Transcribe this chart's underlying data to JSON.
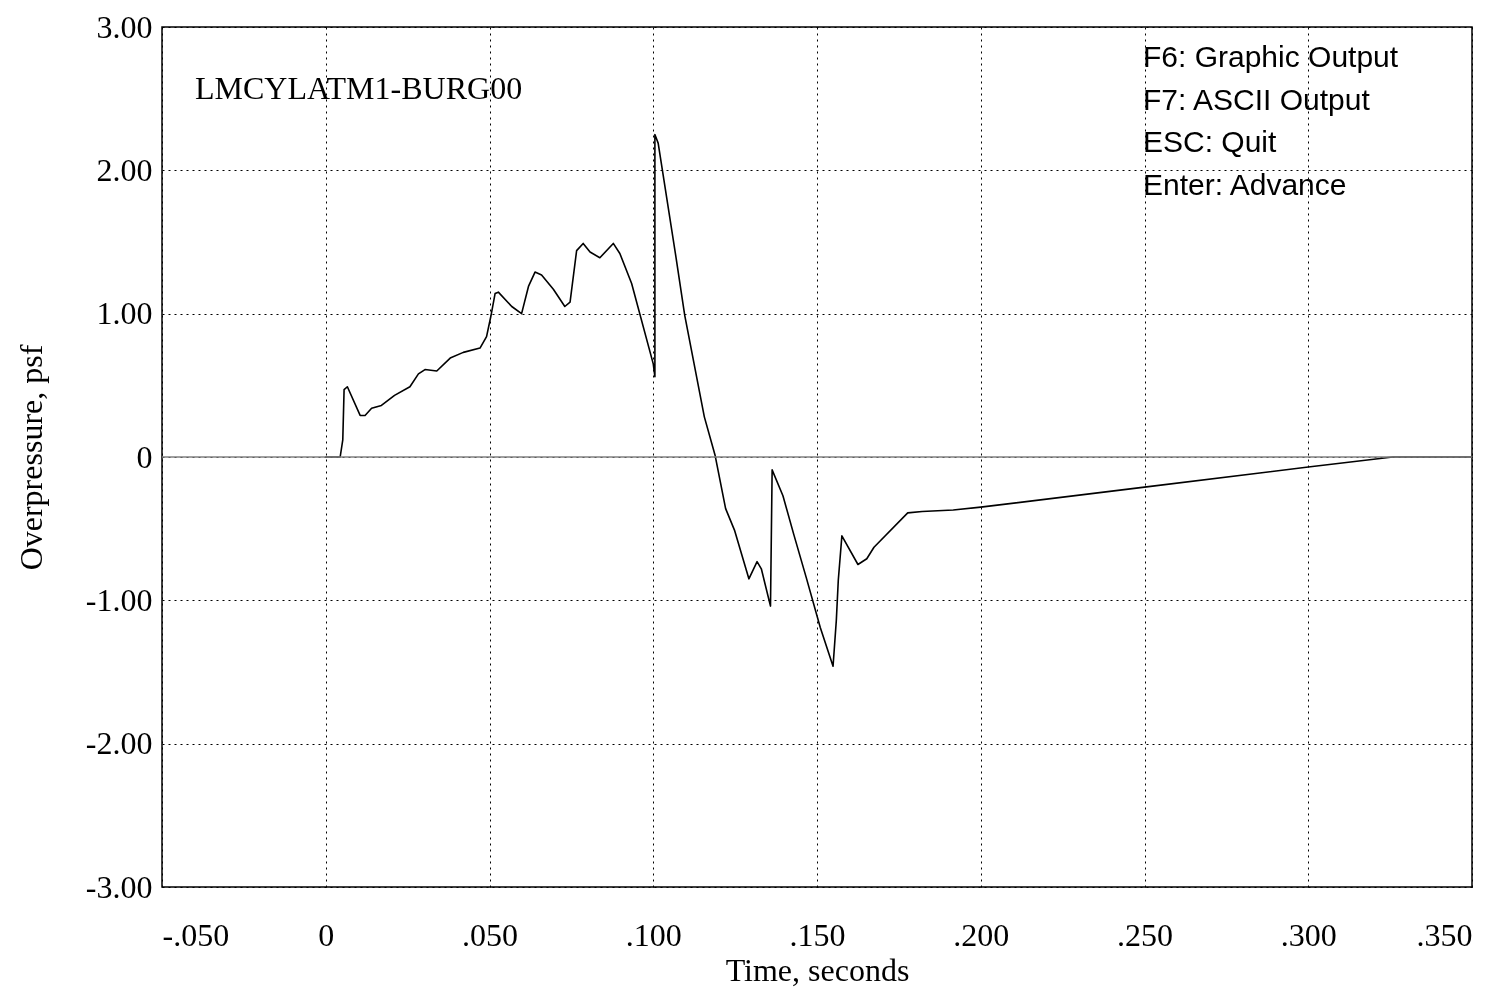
{
  "chart_data": {
    "type": "line",
    "xlabel": "Time, seconds",
    "ylabel": "Overpressure, psf",
    "annotations": [
      "LMCYLATM1-BURG00",
      "F6: Graphic Output",
      "F7: ASCII Output",
      "ESC: Quit",
      "Enter: Advance"
    ],
    "x": [
      0,
      0.0044,
      0.0052,
      0.0056,
      0.0066,
      0.0105,
      0.012,
      0.014,
      0.017,
      0.021,
      0.0257,
      0.0283,
      0.0303,
      0.0339,
      0.038,
      0.042,
      0.0471,
      0.0491,
      0.0504,
      0.0517,
      0.0527,
      0.0568,
      0.0598,
      0.0619,
      0.0639,
      0.0659,
      0.0695,
      0.073,
      0.0746,
      0.0766,
      0.0786,
      0.0807,
      0.0837,
      0.0878,
      0.0898,
      0.0934,
      0.1,
      0.1005,
      0.1005,
      0.1015,
      0.1069,
      0.1096,
      0.1156,
      0.1189,
      0.1221,
      0.1248,
      0.1292,
      0.1317,
      0.133,
      0.1358,
      0.1363,
      0.1396,
      0.1429,
      0.1467,
      0.151,
      0.1549,
      0.1559,
      0.1565,
      0.1576,
      0.1625,
      0.1652,
      0.1674,
      0.1777,
      0.1821,
      0.1916,
      0.2,
      0.25,
      0.3,
      0.3258,
      0.35
    ],
    "series": [
      {
        "color": "#000000",
        "values": [
          0,
          0,
          0.12,
          0.47,
          0.49,
          0.29,
          0.29,
          0.34,
          0.36,
          0.43,
          0.49,
          0.58,
          0.61,
          0.6,
          0.69,
          0.73,
          0.76,
          0.84,
          0.98,
          1.14,
          1.15,
          1.05,
          1.0,
          1.19,
          1.29,
          1.27,
          1.17,
          1.05,
          1.08,
          1.44,
          1.49,
          1.43,
          1.39,
          1.49,
          1.42,
          1.21,
          0.65,
          0.56,
          2.25,
          2.19,
          1.4,
          0.99,
          0.28,
          0.01,
          -0.36,
          -0.51,
          -0.85,
          -0.73,
          -0.78,
          -1.04,
          -0.09,
          -0.27,
          -0.54,
          -0.84,
          -1.19,
          -1.46,
          -1.14,
          -0.86,
          -0.55,
          -0.75,
          -0.71,
          -0.63,
          -0.39,
          -0.38,
          -0.37,
          -0.35,
          -0.21,
          -0.07,
          0,
          0
        ]
      }
    ],
    "xlim": [
      -0.05,
      0.35
    ],
    "ylim": [
      -3,
      3
    ],
    "xticks": [
      {
        "value": -0.05,
        "label": "-.050"
      },
      0,
      {
        "value": 0.05,
        "label": ".050"
      },
      {
        "value": 0.1,
        "label": ".100"
      },
      {
        "value": 0.15,
        "label": ".150"
      },
      {
        "value": 0.2,
        "label": ".200"
      },
      {
        "value": 0.25,
        "label": ".250"
      },
      {
        "value": 0.3,
        "label": ".300"
      },
      {
        "value": 0.35,
        "label": ".350"
      }
    ],
    "yticks": [
      {
        "value": -3,
        "label": "-3.00"
      },
      {
        "value": -2,
        "label": "-2.00"
      },
      {
        "value": -1,
        "label": "-1.00"
      },
      0,
      {
        "value": 1,
        "label": "1.00"
      },
      {
        "value": 2,
        "label": "2.00"
      },
      {
        "value": 3,
        "label": "3.00"
      }
    ],
    "grid": true,
    "line_style": "solid",
    "ref_lines": [
      {
        "axis": "y",
        "value": 0,
        "color": "#808080"
      }
    ]
  }
}
